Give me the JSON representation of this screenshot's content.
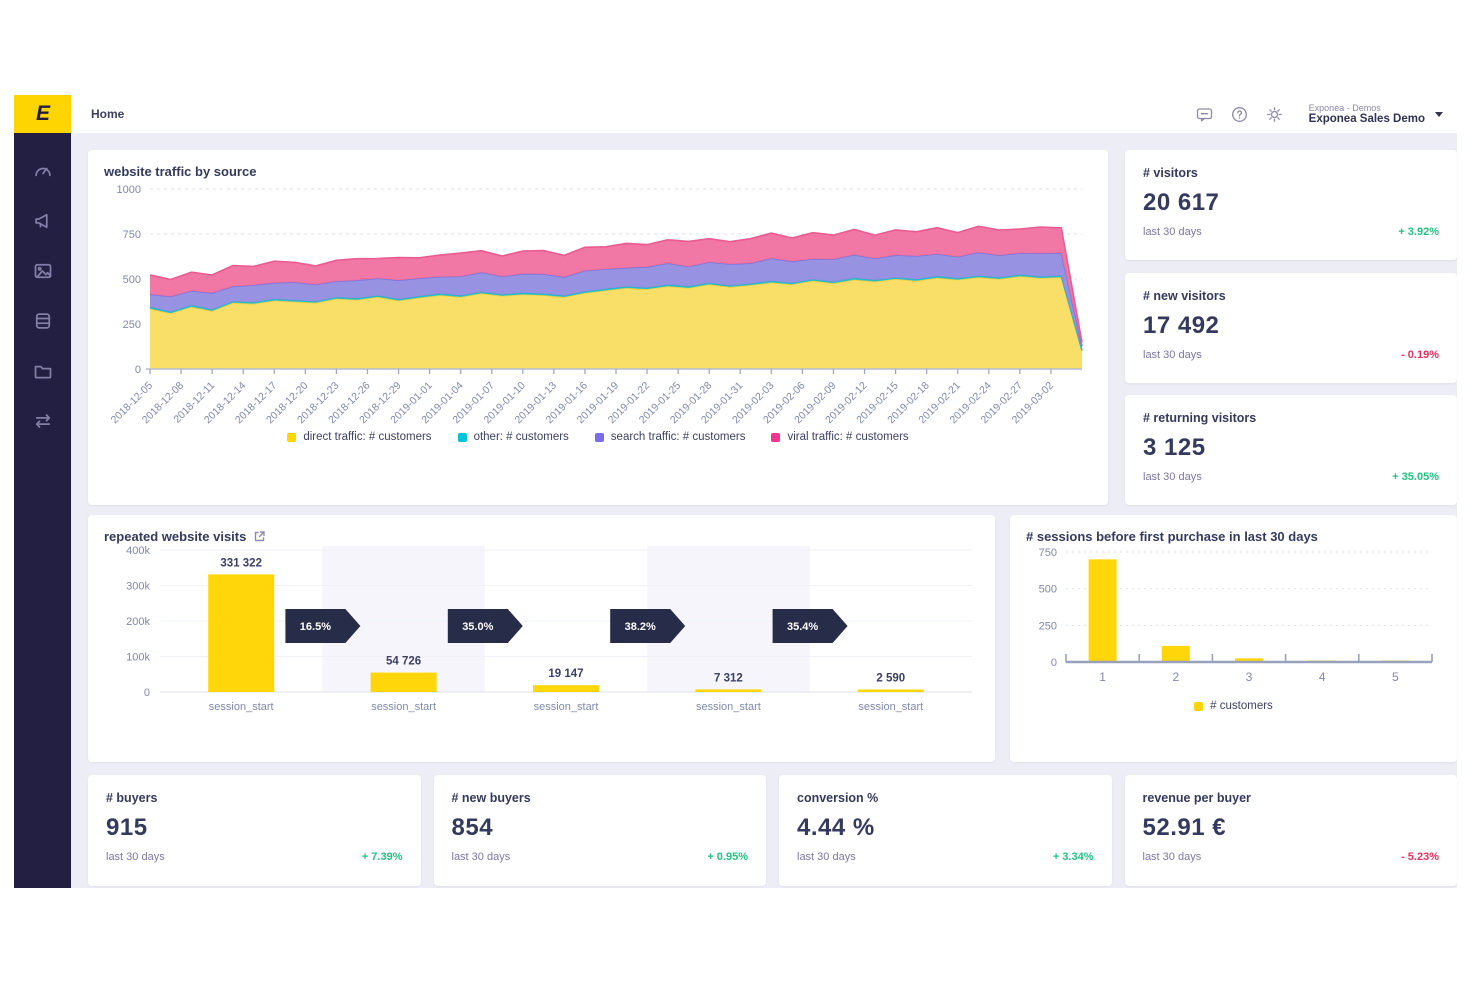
{
  "header": {
    "breadcrumb": "Home",
    "account_org": "Exponea - Demos",
    "account_project": "Exponea Sales Demo"
  },
  "icons": {
    "logo": "exponea-logo",
    "sidebar": [
      "gauge-icon",
      "megaphone-icon",
      "image-icon",
      "database-icon",
      "folder-icon",
      "transfer-icon"
    ],
    "header": [
      "chat-icon",
      "help-icon",
      "settings-icon"
    ],
    "funnel_title": "external-link-icon"
  },
  "colors": {
    "brand_yellow": "#ffd500",
    "sidebar_bg": "#231f43",
    "content_bg": "#ecedf5",
    "positive": "#1fc47f",
    "negative": "#ea2e5d",
    "arrow_chip": "#272c49"
  },
  "kpis": {
    "visitors": {
      "title": "# visitors",
      "value": "20 617",
      "period": "last 30 days",
      "delta": "+ 3.92%"
    },
    "new_visitors": {
      "title": "# new visitors",
      "value": "17 492",
      "period": "last 30 days",
      "delta": "- 0.19%"
    },
    "returning_visitors": {
      "title": "# returning visitors",
      "value": "3 125",
      "period": "last 30 days",
      "delta": "+ 35.05%"
    },
    "buyers": {
      "title": "# buyers",
      "value": "915",
      "period": "last 30 days",
      "delta": "+ 7.39%"
    },
    "new_buyers": {
      "title": "# new buyers",
      "value": "854",
      "period": "last 30 days",
      "delta": "+ 0.95%"
    },
    "conversion": {
      "title": "conversion %",
      "value": "4.44 %",
      "period": "last 30 days",
      "delta": "+ 3.34%"
    },
    "revenue_per_buyer": {
      "title": "revenue per buyer",
      "value": "52.91 €",
      "period": "last 30 days",
      "delta": "- 5.23%"
    }
  },
  "chart_data": [
    {
      "id": "traffic",
      "type": "area",
      "stacked": true,
      "title": "website traffic by source",
      "ylim": [
        0,
        1000
      ],
      "ytick_labels": [
        "1000",
        "750",
        "500",
        "250",
        "0"
      ],
      "yticks": [
        1000,
        750,
        500,
        250,
        0
      ],
      "grid": "dashed-horizontal",
      "x_day_span": 90,
      "x_point_step_days": 2,
      "x_tick_step_days": 3,
      "x_tick_labels": [
        "2018-12-05",
        "2018-12-08",
        "2018-12-11",
        "2018-12-14",
        "2018-12-17",
        "2018-12-20",
        "2018-12-23",
        "2018-12-26",
        "2018-12-29",
        "2019-01-01",
        "2019-01-04",
        "2019-01-07",
        "2019-01-10",
        "2019-01-13",
        "2019-01-16",
        "2019-01-19",
        "2019-01-22",
        "2019-01-25",
        "2019-01-28",
        "2019-01-31",
        "2019-02-03",
        "2019-02-06",
        "2019-02-09",
        "2019-02-12",
        "2019-02-15",
        "2019-02-18",
        "2019-02-21",
        "2019-02-24",
        "2019-02-27",
        "2019-03-02"
      ],
      "legend_position": "bottom",
      "series": [
        {
          "name": "direct traffic: # customers",
          "fill": "#f9dc5f",
          "stroke": "#f0cd45",
          "legend_color": "#ffd500",
          "values": [
            335,
            310,
            345,
            322,
            368,
            362,
            380,
            374,
            368,
            390,
            384,
            400,
            380,
            396,
            410,
            400,
            420,
            406,
            414,
            410,
            400,
            422,
            436,
            450,
            444,
            460,
            450,
            470,
            456,
            466,
            480,
            470,
            490,
            476,
            496,
            486,
            500,
            490,
            506,
            496,
            510,
            500,
            515,
            505,
            510,
            100
          ]
        },
        {
          "name": "other: # customers",
          "fill": "#2ec4c9",
          "stroke": "#1db8c9",
          "legend_color": "#00c4d6",
          "values": [
            8,
            7,
            9,
            8,
            7,
            8,
            9,
            8,
            7,
            8,
            9,
            8,
            7,
            8,
            9,
            8,
            7,
            8,
            9,
            8,
            7,
            8,
            9,
            8,
            7,
            8,
            9,
            8,
            7,
            8,
            9,
            8,
            7,
            8,
            9,
            8,
            7,
            8,
            9,
            8,
            7,
            8,
            9,
            8,
            8,
            4
          ]
        },
        {
          "name": "search traffic: # customers",
          "fill": "#928ce2",
          "stroke": "#7f76da",
          "legend_color": "#7a6ce8",
          "values": [
            72,
            86,
            80,
            92,
            84,
            96,
            90,
            100,
            94,
            90,
            100,
            96,
            106,
            100,
            94,
            106,
            110,
            100,
            106,
            110,
            104,
            116,
            110,
            104,
            116,
            120,
            110,
            116,
            120,
            114,
            126,
            120,
            114,
            126,
            130,
            120,
            126,
            130,
            124,
            120,
            130,
            124,
            120,
            130,
            126,
            24
          ]
        },
        {
          "name": "viral traffic: # customers",
          "fill": "#f0709f",
          "stroke": "#ea5b92",
          "legend_color": "#f2368f",
          "values": [
            108,
            94,
            104,
            100,
            116,
            104,
            120,
            110,
            104,
            116,
            120,
            110,
            126,
            114,
            120,
            130,
            120,
            114,
            126,
            130,
            120,
            130,
            124,
            136,
            124,
            130,
            140,
            130,
            124,
            136,
            140,
            130,
            146,
            134,
            140,
            130,
            140,
            134,
            146,
            134,
            146,
            140,
            134,
            146,
            140,
            20
          ]
        }
      ]
    },
    {
      "id": "funnel",
      "type": "bar",
      "subtype": "funnel",
      "title": "repeated website visits",
      "ylim": [
        0,
        400000
      ],
      "ytick_labels": [
        "400k",
        "300k",
        "200k",
        "100k",
        "0"
      ],
      "yticks": [
        400000,
        300000,
        200000,
        100000,
        0
      ],
      "grid": "solid-horizontal",
      "categories": [
        "session_start",
        "session_start",
        "session_start",
        "session_start",
        "session_start"
      ],
      "values": [
        331322,
        54726,
        19147,
        7312,
        2590
      ],
      "value_labels": [
        "331 322",
        "54 726",
        "19 147",
        "7 312",
        "2 590"
      ],
      "conversion_labels": [
        "16.5%",
        "35.0%",
        "38.2%",
        "35.4%"
      ],
      "bar_color": "#ffd60a",
      "stripe_columns": [
        1,
        3
      ]
    },
    {
      "id": "sessions",
      "type": "bar",
      "title": "# sessions before first purchase in last 30 days",
      "ylim": [
        0,
        750
      ],
      "ytick_labels": [
        "750",
        "500",
        "250",
        "0"
      ],
      "yticks": [
        750,
        500,
        250,
        0
      ],
      "grid": "dashed-horizontal",
      "categories": [
        "1",
        "2",
        "3",
        "4",
        "5"
      ],
      "values": [
        700,
        110,
        25,
        8,
        2
      ],
      "bar_color": "#ffd60a",
      "legend": "# customers",
      "legend_color": "#ffd500",
      "legend_position": "bottom"
    }
  ]
}
